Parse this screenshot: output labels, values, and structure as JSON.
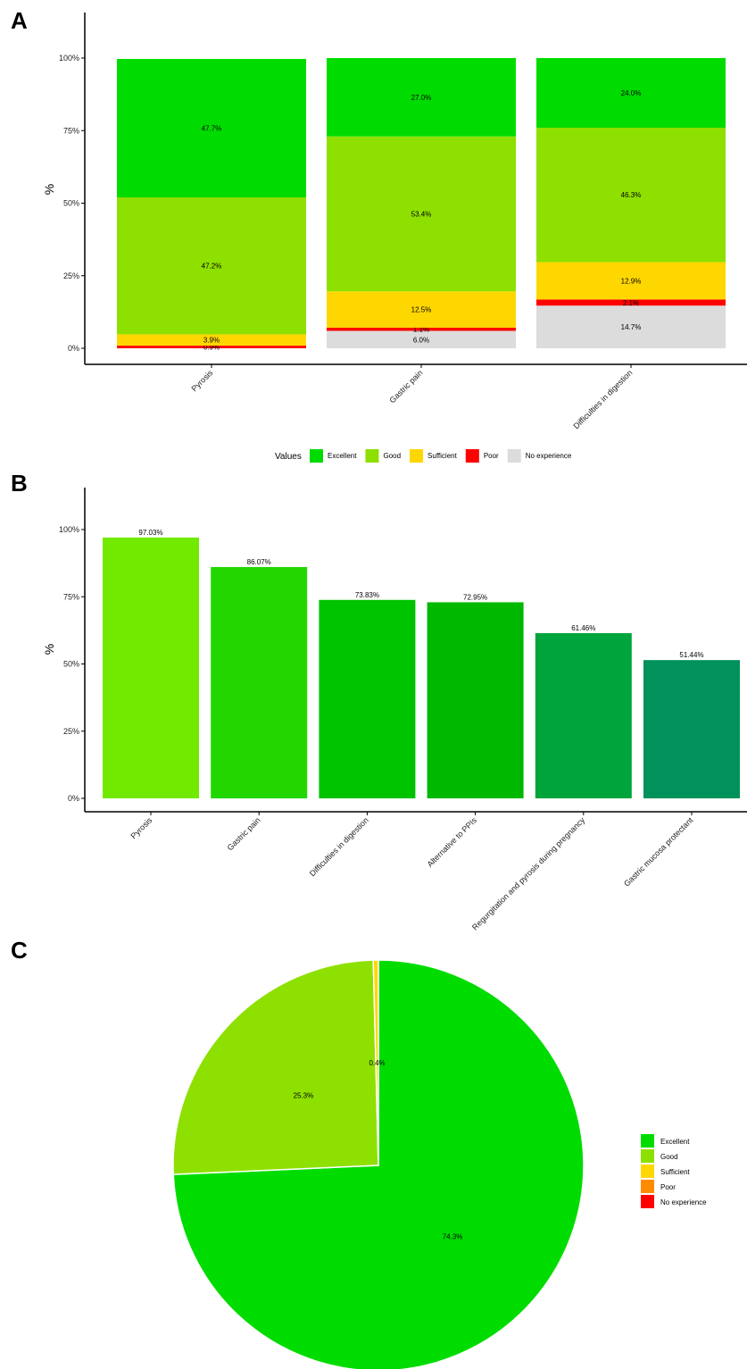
{
  "panels": {
    "a": "A",
    "b": "B",
    "c": "C"
  },
  "chart_data": [
    {
      "type": "bar",
      "stacked": true,
      "ylabel": "%",
      "ylim": [
        0,
        100
      ],
      "yticks": [
        "0%",
        "25%",
        "50%",
        "75%",
        "100%"
      ],
      "categories": [
        "Pyrosis",
        "Gastric pain",
        "Difficulties in digestion"
      ],
      "legend_title": "Values",
      "legend_position": "bottom",
      "series": [
        {
          "name": "No experience",
          "color": "#dcdcdc",
          "values": [
            0,
            6.0,
            14.7
          ],
          "labels": [
            "",
            "6.0%",
            "14.7%"
          ]
        },
        {
          "name": "Poor",
          "color": "#ff0000",
          "values": [
            0.9,
            1.1,
            2.1
          ],
          "labels": [
            "0.9%",
            "1.1%",
            "2.1%"
          ]
        },
        {
          "name": "Sufficient",
          "color": "#ffd700",
          "values": [
            3.9,
            12.5,
            12.9
          ],
          "labels": [
            "3.9%",
            "12.5%",
            "12.9%"
          ]
        },
        {
          "name": "Good",
          "color": "#8ee000",
          "values": [
            47.2,
            53.4,
            46.3
          ],
          "labels": [
            "47.2%",
            "53.4%",
            "46.3%"
          ]
        },
        {
          "name": "Excellent",
          "color": "#00dc00",
          "values": [
            47.7,
            27.0,
            24.0
          ],
          "labels": [
            "47.7%",
            "27.0%",
            "24.0%"
          ]
        }
      ],
      "legend_order": [
        "Excellent",
        "Good",
        "Sufficient",
        "Poor",
        "No experience"
      ]
    },
    {
      "type": "bar",
      "ylabel": "%",
      "ylim": [
        0,
        100
      ],
      "yticks": [
        "0%",
        "25%",
        "50%",
        "75%",
        "100%"
      ],
      "categories": [
        "Pyrosis",
        "Gastric pain",
        "Difficulties in digestion",
        "Alternative to PPIs",
        "Regurgitation and pyrosis during pregnancy",
        "Gastric mucosa protectant"
      ],
      "values": [
        97.03,
        86.07,
        73.83,
        72.95,
        61.46,
        51.44
      ],
      "labels": [
        "97.03%",
        "86.07%",
        "73.83%",
        "72.95%",
        "61.46%",
        "51.44%"
      ],
      "colors": [
        "#72ea00",
        "#22d600",
        "#00c300",
        "#00b800",
        "#00a43c",
        "#00925a"
      ]
    },
    {
      "type": "pie",
      "slices": [
        {
          "name": "Excellent",
          "value": 74.3,
          "label": "74.3%",
          "color": "#00dc00"
        },
        {
          "name": "Good",
          "value": 25.3,
          "label": "25.3%",
          "color": "#8ee000"
        },
        {
          "name": "Sufficient",
          "value": 0.4,
          "label": "0.4%",
          "color": "#ffd700"
        },
        {
          "name": "Poor",
          "value": 0,
          "label": "",
          "color": "#ff8c00"
        },
        {
          "name": "No experience",
          "value": 0,
          "label": "",
          "color": "#ff0000"
        }
      ],
      "legend_position": "right"
    }
  ]
}
